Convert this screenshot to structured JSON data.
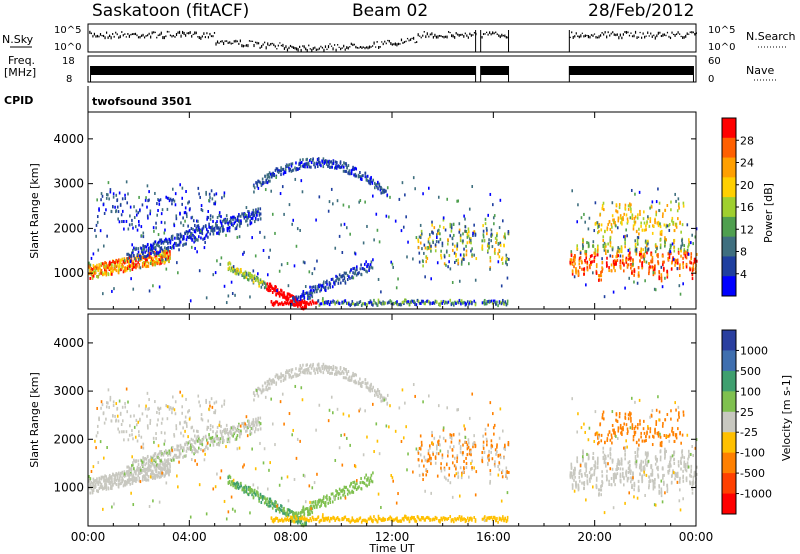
{
  "header": {
    "station": "Saskatoon (fitACF)",
    "beam": "Beam 02",
    "date": "28/Feb/2012"
  },
  "meta_panels": {
    "nsky_label": "N.Sky",
    "nsearch_label": "N.Search",
    "noise_ticks": [
      "10^5",
      "10^0"
    ],
    "freq_label": "Freq.",
    "freq_unit": "[MHz]",
    "freq_ticks": [
      "18",
      "8"
    ],
    "nave_label": "Nave",
    "nave_ticks": [
      "60",
      "0"
    ],
    "cpid_label": "CPID",
    "cpid_value": "twofsound 3501"
  },
  "colors": {
    "power_scale": [
      "#0000ff",
      "#1f3f9f",
      "#3f6f7f",
      "#4f9f4f",
      "#9fcf2f",
      "#ffcf00",
      "#ff9f00",
      "#ff5f00",
      "#ff0000"
    ],
    "velocity_scale": [
      "#2a3f9f",
      "#3f6faf",
      "#3f9f6f",
      "#7fc04f",
      "#c8c8c0",
      "#ffc000",
      "#ff8000",
      "#ff4000",
      "#ff0000"
    ]
  },
  "chart_data": [
    {
      "type": "heatmap",
      "name": "power",
      "xlabel": "",
      "ylabel": "Slant Range [km]",
      "yticks": [
        "1000",
        "2000",
        "3000",
        "4000"
      ],
      "ylim": [
        200,
        4600
      ],
      "xlim": [
        0,
        24
      ],
      "colorbar_label": "Power [dB]",
      "colorbar_ticks": [
        "4",
        "8",
        "12",
        "16",
        "20",
        "24",
        "28"
      ],
      "colorbar_range": [
        0,
        32
      ],
      "data_gaps_hours": [
        [
          15.3,
          15.5
        ],
        [
          16.6,
          19.0
        ]
      ]
    },
    {
      "type": "heatmap",
      "name": "velocity",
      "xlabel": "Time UT",
      "ylabel": "Slant Range [km]",
      "yticks": [
        "1000",
        "2000",
        "3000",
        "4000"
      ],
      "ylim": [
        200,
        4600
      ],
      "xlim": [
        0,
        24
      ],
      "xticks": [
        "00:00",
        "04:00",
        "08:00",
        "12:00",
        "16:00",
        "20:00",
        "00:00"
      ],
      "colorbar_label": "Velocity [m s-1]",
      "colorbar_ticks": [
        "1000",
        "500",
        "100",
        "25",
        "-25",
        "-100",
        "-500",
        "-1000"
      ],
      "data_gaps_hours": [
        [
          15.3,
          15.5
        ],
        [
          16.6,
          19.0
        ]
      ]
    }
  ]
}
